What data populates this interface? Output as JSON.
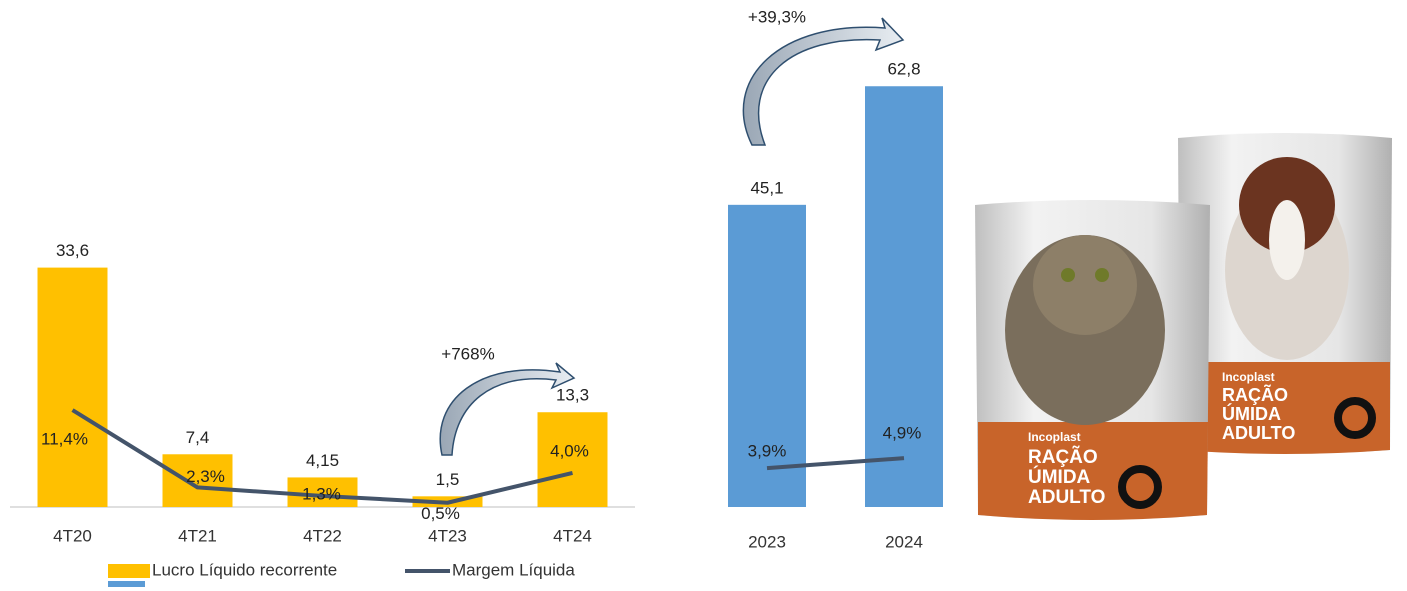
{
  "chart_data": [
    {
      "type": "bar",
      "categories": [
        "4T20",
        "4T21",
        "4T22",
        "4T23",
        "4T24"
      ],
      "series": [
        {
          "name": "Lucro Líquido recorrente",
          "color": "#ffc000",
          "values": [
            33.6,
            7.4,
            4.15,
            1.5,
            13.3
          ],
          "value_labels": [
            "33,6",
            "7,4",
            "4,15",
            "1,5",
            "13,3"
          ]
        },
        {
          "name": "Margem Líquida",
          "color": "#44546a",
          "type": "line",
          "axis": "y2",
          "values": [
            11.4,
            2.3,
            1.3,
            0.5,
            4.0
          ],
          "value_labels": [
            "11,4%",
            "2,3%",
            "1,3%",
            "0,5%",
            "4,0%"
          ]
        }
      ],
      "ylim": [
        0,
        40
      ],
      "y2lim": [
        0,
        33.5
      ],
      "annotation": "+768%"
    },
    {
      "type": "bar",
      "categories": [
        "2023",
        "2024"
      ],
      "series": [
        {
          "color": "#5b9bd5",
          "values": [
            45.1,
            62.8
          ],
          "value_labels": [
            "45,1",
            "62,8"
          ]
        },
        {
          "color": "#44546a",
          "type": "line",
          "axis": "y2",
          "values": [
            3.9,
            4.9
          ],
          "value_labels": [
            "3,9%",
            "4,9%"
          ]
        }
      ],
      "ylim": [
        0,
        70
      ],
      "y2lim": [
        0,
        47
      ],
      "annotation": "+39,3%"
    }
  ],
  "products": [
    {
      "brand": "Incoplast",
      "lines": [
        "RAÇÃO",
        "ÚMIDA",
        "ADULTO"
      ]
    },
    {
      "brand": "Incoplast",
      "lines": [
        "RAÇÃO",
        "ÚMIDA",
        "ADULTO"
      ]
    }
  ]
}
